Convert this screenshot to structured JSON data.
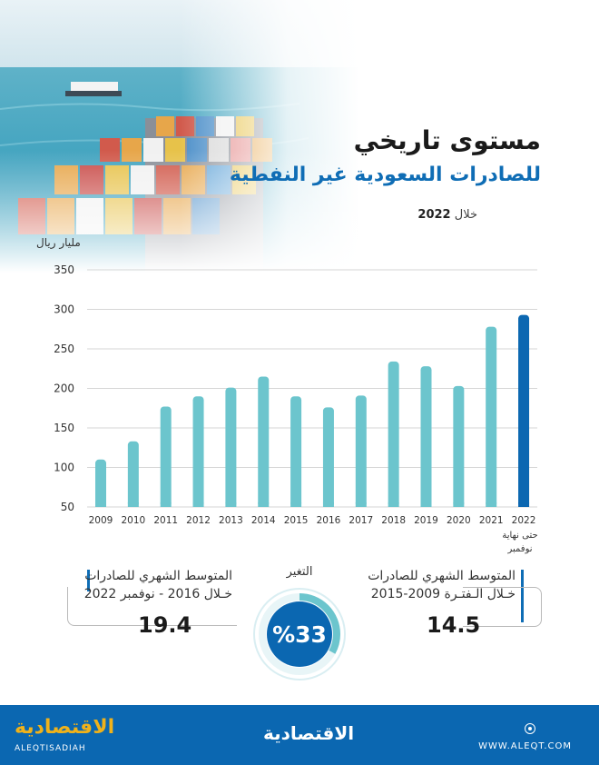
{
  "header": {
    "title": "مستوى تاريخي",
    "subtitle": "للصادرات السعودية غير النفطية",
    "period_prefix": "خلال",
    "period_year": "2022"
  },
  "chart_data": {
    "type": "bar",
    "title": "",
    "ylabel": "مليار ريال",
    "xlabel": "",
    "ylim": [
      50,
      350
    ],
    "yticks": [
      50,
      100,
      150,
      200,
      250,
      300,
      350
    ],
    "grid": true,
    "categories": [
      "2009",
      "2010",
      "2011",
      "2012",
      "2013",
      "2014",
      "2015",
      "2016",
      "2017",
      "2018",
      "2019",
      "2020",
      "2021",
      "2022"
    ],
    "values": [
      110,
      133,
      177,
      190,
      201,
      215,
      190,
      176,
      191,
      234,
      228,
      203,
      278,
      293
    ],
    "last_category_note": "حتى نهاية نوفمبر",
    "colors": {
      "bars": "#6cc5cd",
      "highlight": "#0b67b1",
      "grid": "#d6d6d6"
    }
  },
  "stats": {
    "right": {
      "label_line1": "المتوسط الشهري للصادرات",
      "label_line2": "خـلال الـفتـرة 2009-2015",
      "value": "14.5"
    },
    "left": {
      "label_line1": "المتوسط الشهري للصادرات",
      "label_line2": "خـلال 2016 - نوفمبر 2022",
      "value": "19.4"
    },
    "change": {
      "label": "التغير",
      "value_text": "%33",
      "percent": 33
    }
  },
  "footer": {
    "logo_ar_left": "الاقتصادية",
    "logo_en": "ALEQTISADIAH",
    "logo_ar_center": "الاقتصادية",
    "url": "WWW.ALEQT.COM"
  }
}
